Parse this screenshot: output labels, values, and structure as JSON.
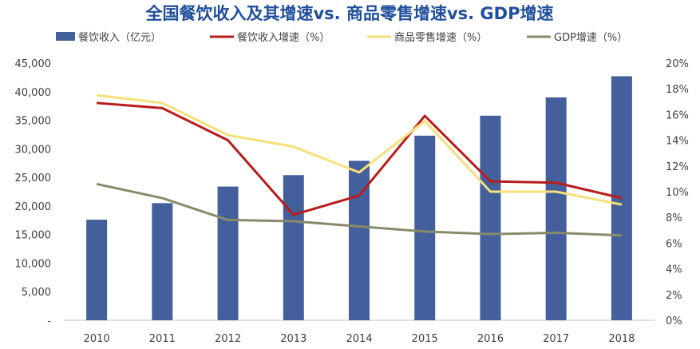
{
  "chart_data": {
    "type": "bar",
    "title": "全国餐饮收入及其增速vs. 商品零售增速vs. GDP增速",
    "categories": [
      "2010",
      "2011",
      "2012",
      "2013",
      "2014",
      "2015",
      "2016",
      "2017",
      "2018"
    ],
    "y_left": {
      "ylim": [
        0,
        45000
      ],
      "ticks": [
        0,
        5000,
        10000,
        15000,
        20000,
        25000,
        30000,
        35000,
        40000,
        45000
      ],
      "tick_labels": [
        "-",
        "5,000",
        "10,000",
        "15,000",
        "20,000",
        "25,000",
        "30,000",
        "35,000",
        "40,000",
        "45,000"
      ]
    },
    "y_right": {
      "ylim": [
        0,
        20
      ],
      "ticks": [
        0,
        2,
        4,
        6,
        8,
        10,
        12,
        14,
        16,
        18,
        20
      ],
      "tick_labels": [
        "0%",
        "2%",
        "4%",
        "6%",
        "8%",
        "10%",
        "12%",
        "14%",
        "16%",
        "18%",
        "20%"
      ]
    },
    "legend_position": "top",
    "grid": false,
    "series": [
      {
        "name": "餐饮收入（亿元）",
        "kind": "bar",
        "axis": "left",
        "color": "#44609c",
        "values": [
          17600,
          20500,
          23400,
          25400,
          27900,
          32300,
          35800,
          39000,
          42700
        ]
      },
      {
        "name": "餐饮收入增速（%）",
        "kind": "line",
        "axis": "right",
        "color": "#b81c1c",
        "values": [
          16.9,
          16.5,
          14.0,
          8.2,
          9.7,
          15.9,
          10.8,
          10.7,
          9.5
        ]
      },
      {
        "name": "商品零售增速（%）",
        "kind": "line",
        "axis": "right",
        "color": "#f5e07a",
        "values": [
          17.5,
          16.9,
          14.4,
          13.5,
          11.5,
          15.5,
          10.0,
          10.0,
          9.0
        ]
      },
      {
        "name": "GDP增速（%）",
        "kind": "line",
        "axis": "right",
        "color": "#8a8a6a",
        "values": [
          10.6,
          9.5,
          7.8,
          7.7,
          7.3,
          6.9,
          6.7,
          6.8,
          6.6
        ]
      }
    ]
  }
}
